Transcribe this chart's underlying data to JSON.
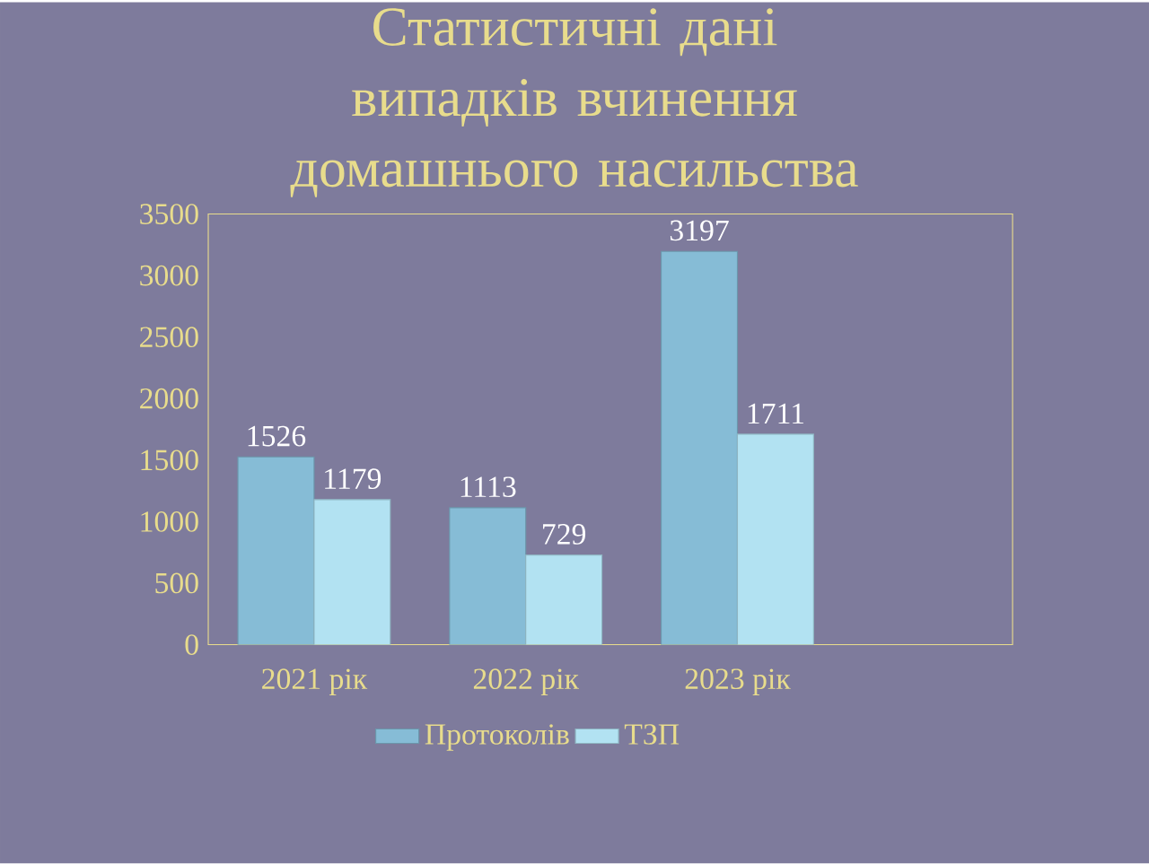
{
  "chart_data": {
    "type": "bar",
    "title": "Статистичні дані випадків вчинення домашнього насильства",
    "categories": [
      "2021 рік",
      "2022 рік",
      "2023 рік"
    ],
    "series": [
      {
        "name": "Протоколів",
        "color": "#86bcd6",
        "values": [
          1526,
          1113,
          3197
        ]
      },
      {
        "name": "ТЗП",
        "color": "#b2e2f2",
        "values": [
          1179,
          729,
          1711
        ]
      }
    ],
    "ylim": [
      0,
      3500
    ],
    "yticks": [
      0,
      500,
      1000,
      1500,
      2000,
      2500,
      3000,
      3500
    ],
    "data_labels": true,
    "legend": "bottom",
    "grid": false
  }
}
